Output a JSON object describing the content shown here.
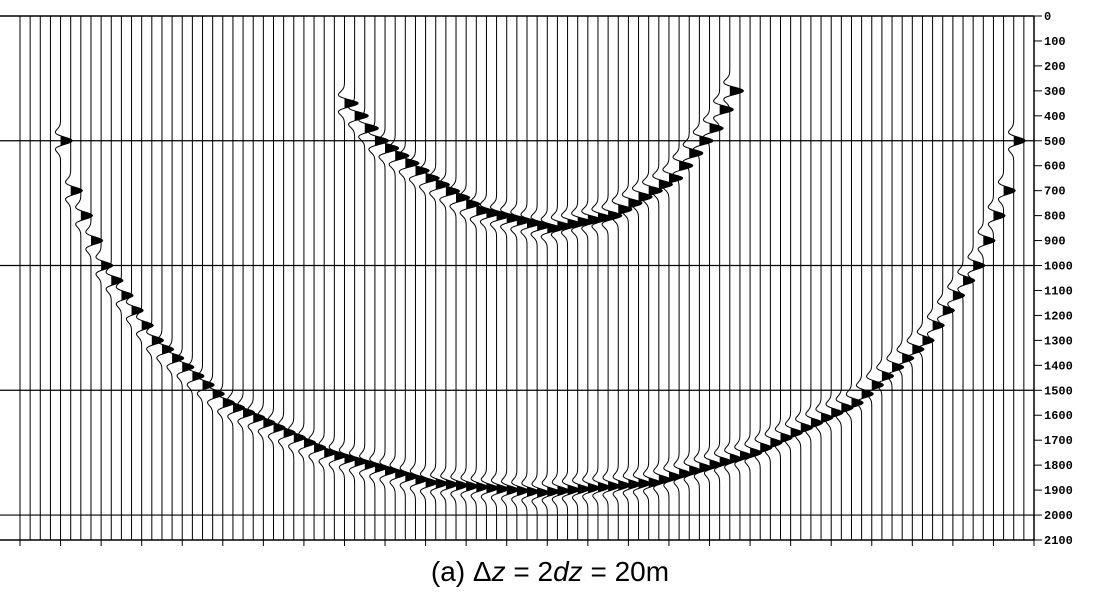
{
  "chart_data": {
    "type": "seismic_wiggle",
    "title": "",
    "xlabel": "",
    "ylabel": "",
    "ylim": [
      0,
      2100
    ],
    "y_inverted": true,
    "y_ticks": [
      0,
      100,
      200,
      300,
      400,
      500,
      600,
      700,
      800,
      900,
      1000,
      1100,
      1200,
      1300,
      1400,
      1500,
      1600,
      1700,
      1800,
      1900,
      2000,
      2100
    ],
    "y_major_gridlines": [
      500,
      1000,
      1500,
      2000
    ],
    "x_range": [
      0,
      100
    ],
    "trace_count": 101,
    "grid": true,
    "colors": {
      "trace": "#000000",
      "fill": "#000000",
      "background": "#ffffff"
    },
    "events": [
      {
        "name": "",
        "apex_x": 52,
        "apex_y": 850,
        "curve_points": [
          {
            "x": 31.5,
            "y": 150
          },
          {
            "x": 32,
            "y": 350
          },
          {
            "x": 35,
            "y": 500
          },
          {
            "x": 40,
            "y": 650
          },
          {
            "x": 45,
            "y": 780
          },
          {
            "x": 52,
            "y": 850
          },
          {
            "x": 58,
            "y": 800
          },
          {
            "x": 64,
            "y": 650
          },
          {
            "x": 68,
            "y": 450
          },
          {
            "x": 70,
            "y": 300
          },
          {
            "x": 70.5,
            "y": 150
          }
        ],
        "amplitude": 1.0
      },
      {
        "name": "",
        "apex_x": 51,
        "apex_y": 1910,
        "curve_points": [
          {
            "x": 3.5,
            "y": 400
          },
          {
            "x": 5,
            "y": 700
          },
          {
            "x": 8,
            "y": 1000
          },
          {
            "x": 13,
            "y": 1300
          },
          {
            "x": 20,
            "y": 1550
          },
          {
            "x": 30,
            "y": 1750
          },
          {
            "x": 40,
            "y": 1870
          },
          {
            "x": 51,
            "y": 1910
          },
          {
            "x": 62,
            "y": 1870
          },
          {
            "x": 72,
            "y": 1750
          },
          {
            "x": 82,
            "y": 1550
          },
          {
            "x": 89,
            "y": 1300
          },
          {
            "x": 94,
            "y": 1000
          },
          {
            "x": 97,
            "y": 700
          },
          {
            "x": 98.5,
            "y": 400
          }
        ],
        "amplitude": 0.85
      }
    ]
  },
  "caption": {
    "prefix": "(a) Δ",
    "z1": "z",
    "mid": " = 2",
    "dz": "dz",
    "suffix": " = 20m"
  }
}
